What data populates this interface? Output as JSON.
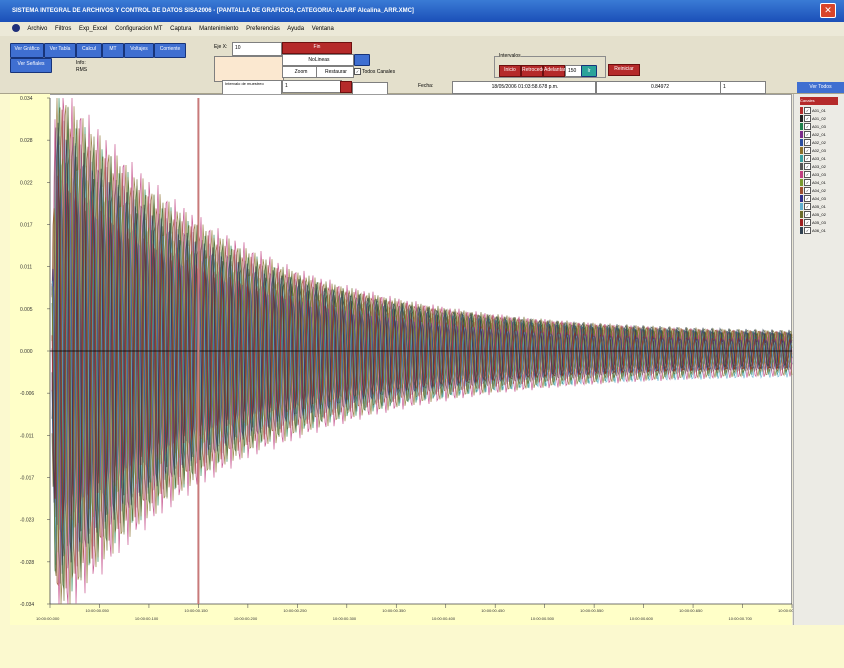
{
  "window": {
    "title": "SISTEMA INTEGRAL DE ARCHIVOS Y CONTROL DE DATOS SISA2006 - [PANTALLA DE GRAFICOS, CATEGORIA: ALARF Alcalina_ARR.XMC]",
    "close_label": "✕"
  },
  "menu": [
    "Archivo",
    "Filtros",
    "Exp_Excel",
    "Configuracion MT",
    "Captura",
    "Mantenimiento",
    "Preferencias",
    "Ayuda",
    "Ventana"
  ],
  "toolbar": {
    "buttons_row1": [
      "Ver Gráfico",
      "Ver Tabla",
      "Calcul",
      "MT",
      "Voltajes",
      "Corriente"
    ],
    "button_row2": "Ver Señales",
    "info_label": "Info:",
    "info_value": "RMS",
    "filter_label": "Eje X:",
    "filter_value": "10",
    "red_top": "Fin",
    "field_mid": "NoLineas",
    "btn_a": "Zoom",
    "btn_b": "Restaurar",
    "todos_label": "Todos Canales",
    "combo_label": "Intervalo de muestreo",
    "combo_value": "1",
    "group_label": "Intervalos",
    "group_buttons": [
      "Inicio",
      "Retroceder",
      "Adelantar"
    ],
    "group_value": "150",
    "group_btn_blue": "Ir",
    "group_btn_red": "Reiniciar",
    "fecha_label": "Fecha:",
    "fecha_value": "18/05/2006 01:03:58.678 p.m.",
    "value_field": "0.84972",
    "small_field": "1",
    "topright": "Ver Todos"
  },
  "chart_data": {
    "type": "line",
    "title": "",
    "xlabel": "",
    "ylabel": "",
    "y_ticks": [
      "0.034",
      "0.028",
      "0.022",
      "0.017",
      "0.011",
      "0.005",
      "0.000",
      "-0.006",
      "-0.011",
      "-0.017",
      "-0.023",
      "-0.028",
      "-0.034"
    ],
    "x_ticks": [
      "10:00:00.000",
      "10:00:00.050",
      "10:00:00.100",
      "10:00:00.150",
      "10:00:00.200",
      "10:00:00.250",
      "10:00:00.300",
      "10:00:00.350",
      "10:00:00.400",
      "10:00:00.450",
      "10:00:00.500",
      "10:00:00.550",
      "10:00:00.600",
      "10:00:00.650",
      "10:00:00.700",
      "10:00:00.750"
    ],
    "ylim": [
      -0.034,
      0.034
    ],
    "cursor_time": "10:00:00.150",
    "grid": false,
    "legend_position": "right",
    "series": [
      {
        "name": "A01_01",
        "color": "#b52a2a"
      },
      {
        "name": "A01_02",
        "color": "#222222"
      },
      {
        "name": "A01_03",
        "color": "#1d7f4a"
      },
      {
        "name": "A02_01",
        "color": "#7b2b8a"
      },
      {
        "name": "A02_02",
        "color": "#2c4fa0"
      },
      {
        "name": "A02_03",
        "color": "#8a6f2a"
      },
      {
        "name": "A03_01",
        "color": "#3aa0a0"
      },
      {
        "name": "A03_02",
        "color": "#555555"
      },
      {
        "name": "A03_03",
        "color": "#c04080"
      },
      {
        "name": "A04_01",
        "color": "#7a9a30"
      },
      {
        "name": "A04_02",
        "color": "#9c4d2e"
      },
      {
        "name": "A04_03",
        "color": "#2f2f8a"
      },
      {
        "name": "A05_01",
        "color": "#5fb0d0"
      },
      {
        "name": "A05_02",
        "color": "#6b6b2a"
      },
      {
        "name": "A05_03",
        "color": "#a02020"
      },
      {
        "name": "A06_01",
        "color": "#304050"
      }
    ]
  },
  "legend_header": "Canales"
}
